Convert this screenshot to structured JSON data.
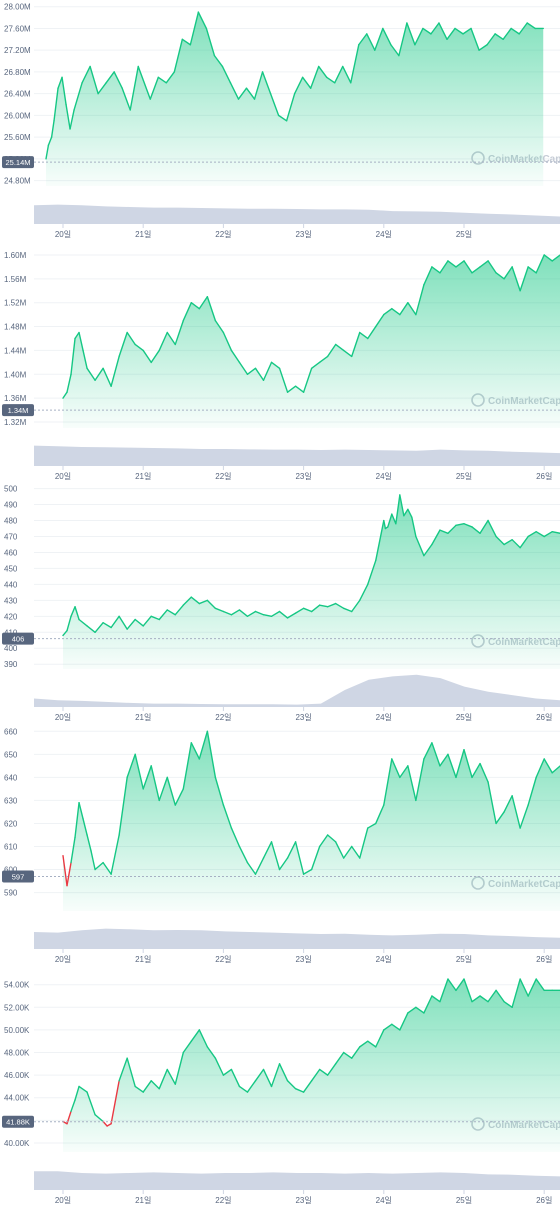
{
  "watermark": "CoinMarketCap",
  "colors": {
    "up": "#16c784",
    "down": "#ea3943",
    "volume": "#cfd6e4",
    "grid": "#eff2f5",
    "baseline": "#a6b0c3",
    "text": "#58667e",
    "badge": "#58667e"
  },
  "x_labels": [
    "20일",
    "21일",
    "22일",
    "23일",
    "24일",
    "25일",
    "26일"
  ],
  "chart_data": [
    {
      "type": "area",
      "y_ticks": [
        "28.00M",
        "27.60M",
        "27.20M",
        "26.80M",
        "26.40M",
        "26.00M",
        "25.60M",
        "25.20M",
        "24.80M"
      ],
      "ylim": [
        24.7,
        28.05
      ],
      "baseline_label": "25.14M",
      "baseline": 25.14,
      "x_ticks": [
        "20일",
        "21일",
        "22일",
        "23일",
        "24일",
        "25일"
      ],
      "series": [
        {
          "x": [
            0,
            0.03,
            0.07,
            0.1,
            0.15,
            0.2,
            0.25,
            0.3,
            0.35,
            0.45,
            0.55,
            0.65,
            0.75,
            0.85,
            0.95,
            1.05,
            1.15,
            1.3,
            1.4,
            1.5,
            1.6,
            1.7,
            1.8,
            1.9,
            2.0,
            2.1,
            2.2,
            2.3,
            2.4,
            2.5,
            2.6,
            2.7,
            2.8,
            2.9,
            3.0,
            3.1,
            3.2,
            3.3,
            3.4,
            3.5,
            3.6,
            3.7,
            3.8,
            3.9,
            4.0,
            4.1,
            4.2,
            4.3,
            4.4,
            4.5,
            4.6,
            4.7,
            4.8,
            4.9,
            5.0,
            5.1,
            5.2,
            5.3,
            5.4,
            5.5,
            5.6,
            5.7,
            5.8,
            5.9,
            6.0,
            6.1,
            6.2
          ],
          "values": [
            25.2,
            25.45,
            25.6,
            25.9,
            26.5,
            26.7,
            26.2,
            25.75,
            26.1,
            26.6,
            26.9,
            26.4,
            26.6,
            26.8,
            26.5,
            26.1,
            26.9,
            26.3,
            26.7,
            26.6,
            26.8,
            27.4,
            27.3,
            27.9,
            27.6,
            27.1,
            26.9,
            26.6,
            26.3,
            26.5,
            26.3,
            26.8,
            26.4,
            26.0,
            25.9,
            26.4,
            26.7,
            26.5,
            26.9,
            26.7,
            26.6,
            26.9,
            26.6,
            27.3,
            27.5,
            27.2,
            27.6,
            27.3,
            27.1,
            27.7,
            27.3,
            27.6,
            27.5,
            27.7,
            27.4,
            27.6,
            27.5,
            27.6,
            27.2,
            27.3,
            27.5,
            27.4,
            27.6,
            27.5,
            27.7,
            27.6,
            27.6
          ]
        }
      ],
      "volume": [
        0.55,
        0.57,
        0.55,
        0.52,
        0.5,
        0.48,
        0.48,
        0.47,
        0.46,
        0.45,
        0.45,
        0.44,
        0.43,
        0.43,
        0.42,
        0.38,
        0.37,
        0.36,
        0.33,
        0.3,
        0.28,
        0.25,
        0.22
      ]
    },
    {
      "type": "area",
      "y_ticks": [
        "1.60M",
        "1.56M",
        "1.52M",
        "1.48M",
        "1.44M",
        "1.40M",
        "1.36M",
        "1.32M"
      ],
      "ylim": [
        1.31,
        1.615
      ],
      "baseline_label": "1.34M",
      "baseline": 1.34,
      "x_ticks": [
        "20일",
        "21일",
        "22일",
        "23일",
        "24일",
        "25일",
        "26일"
      ],
      "series": [
        {
          "x": [
            0,
            0.05,
            0.1,
            0.15,
            0.2,
            0.25,
            0.3,
            0.4,
            0.5,
            0.6,
            0.7,
            0.8,
            0.9,
            1.0,
            1.1,
            1.2,
            1.3,
            1.4,
            1.5,
            1.6,
            1.7,
            1.8,
            1.9,
            2.0,
            2.1,
            2.2,
            2.3,
            2.4,
            2.5,
            2.6,
            2.7,
            2.8,
            2.9,
            3.0,
            3.1,
            3.2,
            3.3,
            3.4,
            3.5,
            3.6,
            3.7,
            3.8,
            3.9,
            4.0,
            4.1,
            4.2,
            4.3,
            4.4,
            4.5,
            4.6,
            4.7,
            4.8,
            4.9,
            5.0,
            5.1,
            5.2,
            5.3,
            5.4,
            5.5,
            5.6,
            5.7,
            5.8,
            5.9,
            6.0,
            6.1,
            6.2
          ],
          "values": [
            1.36,
            1.37,
            1.4,
            1.46,
            1.47,
            1.44,
            1.41,
            1.39,
            1.41,
            1.38,
            1.43,
            1.47,
            1.45,
            1.44,
            1.42,
            1.44,
            1.47,
            1.45,
            1.49,
            1.52,
            1.51,
            1.53,
            1.49,
            1.47,
            1.44,
            1.42,
            1.4,
            1.41,
            1.39,
            1.42,
            1.41,
            1.37,
            1.38,
            1.37,
            1.41,
            1.42,
            1.43,
            1.45,
            1.44,
            1.43,
            1.47,
            1.46,
            1.48,
            1.5,
            1.51,
            1.5,
            1.52,
            1.5,
            1.55,
            1.58,
            1.57,
            1.59,
            1.58,
            1.59,
            1.57,
            1.58,
            1.59,
            1.57,
            1.56,
            1.58,
            1.54,
            1.58,
            1.57,
            1.6,
            1.59,
            1.6
          ]
        }
      ],
      "volume": [
        0.6,
        0.58,
        0.56,
        0.55,
        0.54,
        0.53,
        0.52,
        0.5,
        0.5,
        0.49,
        0.48,
        0.48,
        0.47,
        0.48,
        0.47,
        0.46,
        0.45,
        0.48,
        0.46,
        0.45,
        0.42,
        0.4,
        0.38
      ]
    },
    {
      "type": "area",
      "y_ticks": [
        "500",
        "490",
        "480",
        "470",
        "460",
        "450",
        "440",
        "430",
        "420",
        "410",
        "400",
        "390"
      ],
      "ylim": [
        387,
        501
      ],
      "baseline_label": "406",
      "baseline": 406,
      "x_ticks": [
        "20일",
        "21일",
        "22일",
        "23일",
        "24일",
        "25일",
        "26일"
      ],
      "series": [
        {
          "x": [
            0,
            0.05,
            0.1,
            0.15,
            0.2,
            0.3,
            0.4,
            0.5,
            0.6,
            0.7,
            0.8,
            0.9,
            1.0,
            1.1,
            1.2,
            1.3,
            1.4,
            1.5,
            1.6,
            1.7,
            1.8,
            1.9,
            2.0,
            2.1,
            2.2,
            2.3,
            2.4,
            2.5,
            2.6,
            2.7,
            2.8,
            2.9,
            3.0,
            3.1,
            3.2,
            3.3,
            3.4,
            3.5,
            3.6,
            3.7,
            3.8,
            3.9,
            4.0,
            4.02,
            4.05,
            4.1,
            4.15,
            4.2,
            4.25,
            4.3,
            4.35,
            4.4,
            4.5,
            4.6,
            4.7,
            4.8,
            4.9,
            5.0,
            5.1,
            5.2,
            5.3,
            5.4,
            5.5,
            5.6,
            5.7,
            5.8,
            5.9,
            6.0,
            6.1,
            6.2
          ],
          "values": [
            408,
            411,
            420,
            426,
            418,
            414,
            410,
            416,
            413,
            420,
            412,
            418,
            414,
            420,
            418,
            424,
            421,
            427,
            432,
            428,
            430,
            425,
            423,
            421,
            424,
            420,
            423,
            421,
            420,
            423,
            419,
            422,
            425,
            423,
            427,
            426,
            428,
            425,
            423,
            430,
            440,
            455,
            480,
            475,
            476,
            484,
            478,
            496,
            483,
            487,
            482,
            470,
            458,
            465,
            474,
            472,
            477,
            478,
            476,
            472,
            480,
            470,
            465,
            468,
            463,
            470,
            473,
            470,
            473,
            472
          ]
        }
      ],
      "volume": [
        0.25,
        0.2,
        0.18,
        0.15,
        0.12,
        0.1,
        0.1,
        0.09,
        0.08,
        0.08,
        0.08,
        0.07,
        0.1,
        0.5,
        0.8,
        0.9,
        0.95,
        0.85,
        0.6,
        0.45,
        0.35,
        0.25,
        0.2
      ]
    },
    {
      "type": "area",
      "y_ticks": [
        "660",
        "650",
        "640",
        "630",
        "620",
        "610",
        "600",
        "590"
      ],
      "ylim": [
        582,
        661
      ],
      "baseline_label": "597",
      "baseline": 597,
      "x_ticks": [
        "20일",
        "21일",
        "22일",
        "23일",
        "24일",
        "25일",
        "26일"
      ],
      "series": [
        {
          "x": [
            0,
            0.05,
            0.1,
            0.15,
            0.2,
            0.25,
            0.3,
            0.35,
            0.4,
            0.5,
            0.6,
            0.7,
            0.8,
            0.9,
            1.0,
            1.1,
            1.2,
            1.3,
            1.4,
            1.5,
            1.6,
            1.7,
            1.8,
            1.9,
            2.0,
            2.1,
            2.2,
            2.3,
            2.4,
            2.5,
            2.6,
            2.7,
            2.8,
            2.9,
            3.0,
            3.1,
            3.2,
            3.3,
            3.4,
            3.5,
            3.6,
            3.7,
            3.8,
            3.9,
            4.0,
            4.1,
            4.2,
            4.3,
            4.4,
            4.5,
            4.6,
            4.7,
            4.8,
            4.9,
            5.0,
            5.1,
            5.2,
            5.3,
            5.4,
            5.5,
            5.6,
            5.7,
            5.8,
            5.9,
            6.0,
            6.1,
            6.2
          ],
          "values": [
            606,
            593,
            603,
            614,
            629,
            622,
            615,
            608,
            600,
            603,
            598,
            615,
            640,
            650,
            635,
            645,
            630,
            640,
            628,
            635,
            655,
            648,
            660,
            640,
            628,
            618,
            610,
            603,
            598,
            605,
            612,
            600,
            605,
            612,
            598,
            600,
            610,
            615,
            612,
            605,
            610,
            605,
            618,
            620,
            628,
            648,
            640,
            645,
            630,
            648,
            655,
            645,
            650,
            640,
            652,
            640,
            646,
            638,
            620,
            625,
            632,
            618,
            628,
            640,
            648,
            642,
            645
          ]
        }
      ],
      "volume": [
        0.5,
        0.48,
        0.55,
        0.6,
        0.58,
        0.55,
        0.56,
        0.55,
        0.52,
        0.5,
        0.48,
        0.46,
        0.44,
        0.45,
        0.42,
        0.4,
        0.42,
        0.45,
        0.44,
        0.4,
        0.38,
        0.35,
        0.33
      ]
    },
    {
      "type": "area",
      "y_ticks": [
        "54.00K",
        "52.00K",
        "50.00K",
        "48.00K",
        "46.00K",
        "44.00K",
        "42.00K",
        "40.00K"
      ],
      "ylim": [
        39.2,
        55.3
      ],
      "baseline_label": "41.88K",
      "baseline": 41.88,
      "x_ticks": [
        "20일",
        "21일",
        "22일",
        "23일",
        "24일",
        "25일",
        "26일"
      ],
      "series": [
        {
          "x": [
            0,
            0.05,
            0.1,
            0.15,
            0.2,
            0.3,
            0.4,
            0.5,
            0.55,
            0.6,
            0.7,
            0.8,
            0.9,
            1.0,
            1.1,
            1.2,
            1.3,
            1.4,
            1.5,
            1.6,
            1.7,
            1.8,
            1.9,
            2.0,
            2.1,
            2.2,
            2.3,
            2.4,
            2.5,
            2.6,
            2.7,
            2.8,
            2.9,
            3.0,
            3.1,
            3.2,
            3.3,
            3.4,
            3.5,
            3.6,
            3.7,
            3.8,
            3.9,
            4.0,
            4.1,
            4.2,
            4.3,
            4.4,
            4.5,
            4.6,
            4.7,
            4.8,
            4.9,
            5.0,
            5.1,
            5.2,
            5.3,
            5.4,
            5.5,
            5.6,
            5.7,
            5.8,
            5.9,
            6.0,
            6.1,
            6.2
          ],
          "values": [
            41.9,
            41.7,
            42.8,
            43.8,
            45.0,
            44.5,
            42.5,
            41.9,
            41.5,
            41.7,
            45.5,
            47.5,
            45.0,
            44.5,
            45.5,
            44.8,
            46.5,
            45.2,
            48.0,
            49.0,
            50.0,
            48.5,
            47.5,
            46.0,
            46.5,
            45.0,
            44.5,
            45.5,
            46.5,
            45.0,
            47.0,
            45.5,
            44.8,
            44.5,
            45.5,
            46.5,
            46.0,
            47.0,
            48.0,
            47.5,
            48.5,
            49.0,
            48.5,
            50.0,
            50.5,
            50.0,
            51.5,
            52.0,
            51.5,
            53.0,
            52.5,
            54.5,
            53.5,
            54.5,
            52.5,
            53.0,
            52.5,
            53.5,
            52.5,
            52.0,
            54.5,
            53.0,
            54.5,
            53.5,
            53.5,
            53.5
          ]
        }
      ],
      "volume": [
        0.55,
        0.55,
        0.5,
        0.48,
        0.5,
        0.52,
        0.5,
        0.48,
        0.5,
        0.5,
        0.52,
        0.5,
        0.5,
        0.48,
        0.5,
        0.48,
        0.5,
        0.52,
        0.5,
        0.46,
        0.45,
        0.42,
        0.4
      ]
    }
  ]
}
